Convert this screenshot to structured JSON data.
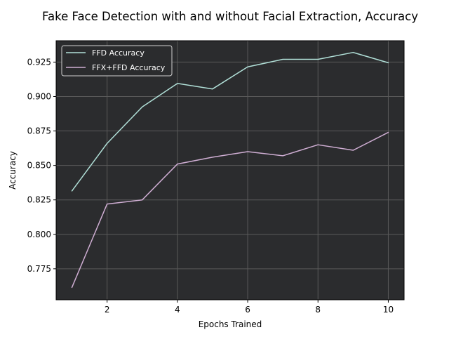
{
  "chart_data": {
    "type": "line",
    "title": "Fake Face Detection with and without Facial Extraction, Accuracy",
    "xlabel": "Epochs Trained",
    "ylabel": "Accuracy",
    "x": [
      1,
      2,
      3,
      4,
      5,
      6,
      7,
      8,
      9,
      10
    ],
    "xlim": [
      0.55,
      10.45
    ],
    "ylim": [
      0.7525,
      0.9405
    ],
    "xticks": [
      2,
      4,
      6,
      8,
      10
    ],
    "xtick_labels": [
      "2",
      "4",
      "6",
      "8",
      "10"
    ],
    "yticks": [
      0.775,
      0.8,
      0.825,
      0.85,
      0.875,
      0.9,
      0.925
    ],
    "ytick_labels": [
      "0.775",
      "0.800",
      "0.825",
      "0.850",
      "0.875",
      "0.900",
      "0.925"
    ],
    "grid": true,
    "legend_position": "top-left",
    "background_color": "#2b2c2e",
    "series": [
      {
        "name": "FFD Accuracy",
        "color": "#b1e0d8",
        "values": [
          0.8315,
          0.866,
          0.8925,
          0.9095,
          0.9055,
          0.9215,
          0.927,
          0.927,
          0.932,
          0.9245
        ]
      },
      {
        "name": "FFX+FFD Accuracy",
        "color": "#cfaed3",
        "values": [
          0.7615,
          0.822,
          0.825,
          0.851,
          0.856,
          0.86,
          0.857,
          0.865,
          0.861,
          0.874
        ]
      }
    ]
  }
}
